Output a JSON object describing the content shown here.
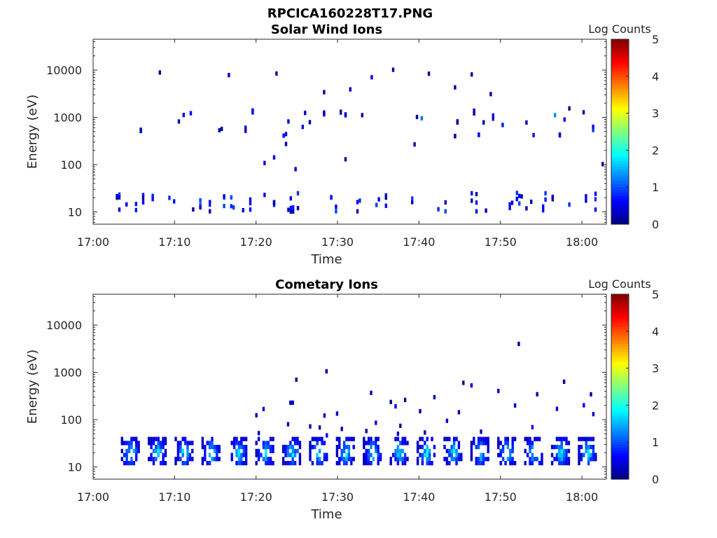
{
  "figure": {
    "title": "RPCICA160228T17.PNG"
  },
  "chart_data": [
    {
      "type": "heatmap",
      "title": "Solar Wind Ions",
      "xlabel": "Time",
      "ylabel": "Energy (eV)",
      "x_ticks": [
        "17:00",
        "17:10",
        "17:20",
        "17:30",
        "17:40",
        "17:50",
        "18:00"
      ],
      "x_range_minutes": [
        0,
        63
      ],
      "y_ticks": [
        "10",
        "100",
        "1000",
        "10000"
      ],
      "y_scale": "log",
      "y_range": [
        5.5,
        45000
      ],
      "colorbar": {
        "label": "Log Counts",
        "ticks": [
          "0",
          "1",
          "2",
          "3",
          "4",
          "5"
        ],
        "range": [
          0,
          5
        ],
        "colormap": "jet"
      },
      "activity": [
        {
          "t": [
            2,
            63
          ],
          "band": "10-40 eV",
          "log_counts": [
            0.1,
            1.0
          ],
          "density": "moderate"
        },
        {
          "t": [
            2,
            63
          ],
          "band": "400-1500 eV",
          "log_counts": [
            0.1,
            1.2
          ],
          "density": "sparse"
        },
        {
          "t": [
            2,
            63
          ],
          "band": "60-12000 eV",
          "log_counts": [
            0.1,
            0.5
          ],
          "density": "very sparse"
        }
      ]
    },
    {
      "type": "heatmap",
      "title": "Cometary Ions",
      "xlabel": "Time",
      "ylabel": "Energy (eV)",
      "x_ticks": [
        "17:00",
        "17:10",
        "17:20",
        "17:30",
        "17:40",
        "17:50",
        "18:00"
      ],
      "x_range_minutes": [
        0,
        63
      ],
      "y_ticks": [
        "10",
        "100",
        "1000",
        "10000"
      ],
      "y_scale": "log",
      "y_range": [
        5.5,
        45000
      ],
      "colorbar": {
        "label": "Log Counts",
        "ticks": [
          "0",
          "1",
          "2",
          "3",
          "4",
          "5"
        ],
        "range": [
          0,
          5
        ],
        "colormap": "jet"
      },
      "activity": [
        {
          "t": [
            4,
            63
          ],
          "band": "12-40 eV",
          "log_counts": [
            0.2,
            2.0
          ],
          "density": "periodic bursts (~3 min)"
        },
        {
          "t": [
            20,
            63
          ],
          "band": "40-700 eV",
          "log_counts": [
            0.1,
            0.5
          ],
          "density": "sparse tails"
        }
      ]
    }
  ]
}
